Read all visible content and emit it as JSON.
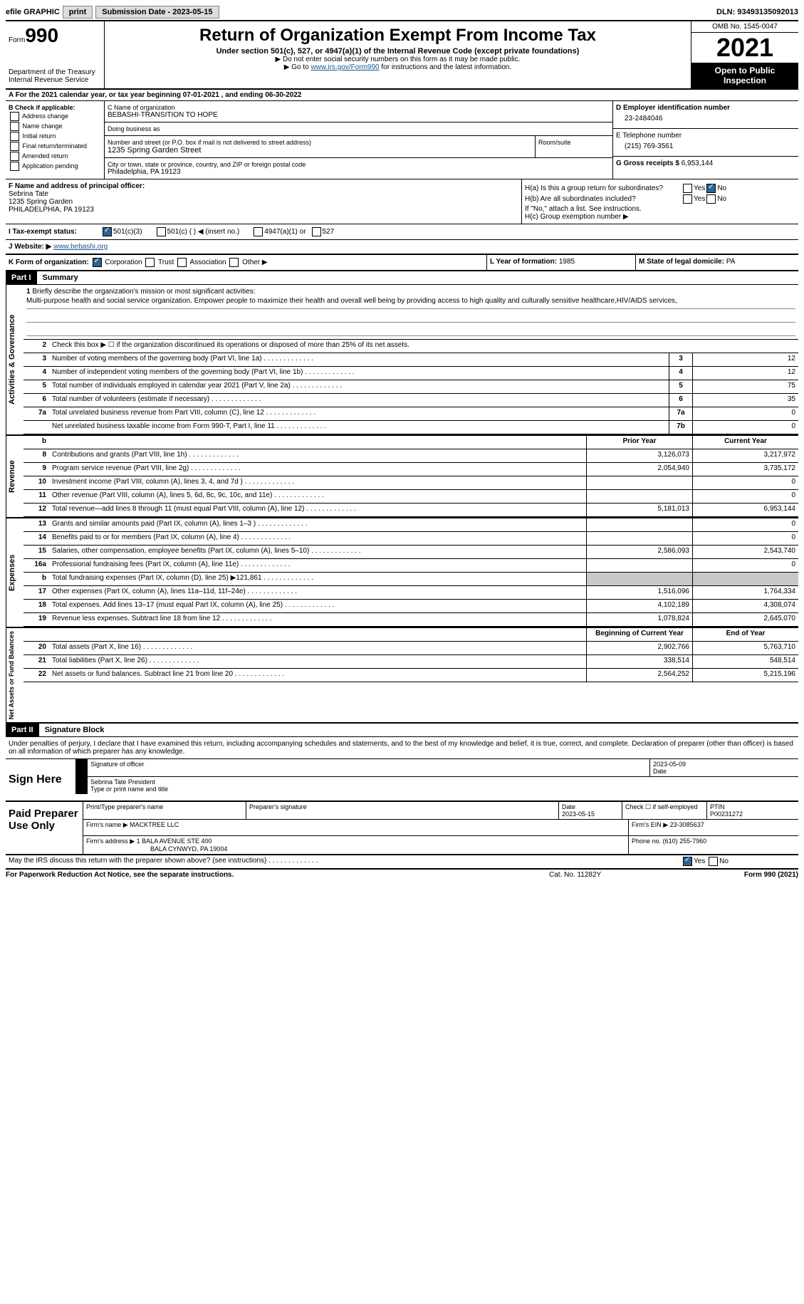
{
  "topbar": {
    "efile_label": "efile GRAPHIC",
    "print_btn": "print",
    "submission_label": "Submission Date - 2023-05-15",
    "dln": "DLN: 93493135092013"
  },
  "header": {
    "form_label": "Form",
    "form_number": "990",
    "dept": "Department of the Treasury",
    "irs": "Internal Revenue Service",
    "title": "Return of Organization Exempt From Income Tax",
    "subtitle": "Under section 501(c), 527, or 4947(a)(1) of the Internal Revenue Code (except private foundations)",
    "note1": "▶ Do not enter social security numbers on this form as it may be made public.",
    "note2_prefix": "▶ Go to ",
    "note2_link": "www.irs.gov/Form990",
    "note2_suffix": " for instructions and the latest information.",
    "omb": "OMB No. 1545-0047",
    "year": "2021",
    "open_public": "Open to Public Inspection"
  },
  "line_a": "A For the 2021 calendar year, or tax year beginning 07-01-2021   , and ending 06-30-2022",
  "section_b": {
    "label": "B Check if applicable:",
    "items": [
      "Address change",
      "Name change",
      "Initial return",
      "Final return/terminated",
      "Amended return",
      "Application pending"
    ]
  },
  "section_c": {
    "name_label": "C Name of organization",
    "org_name": "BEBASHI-TRANSITION TO HOPE",
    "dba_label": "Doing business as",
    "dba": "",
    "street_label": "Number and street (or P.O. box if mail is not delivered to street address)",
    "street": "1235 Spring Garden Street",
    "room_label": "Room/suite",
    "city_label": "City or town, state or province, country, and ZIP or foreign postal code",
    "city": "Philadelphia, PA  19123"
  },
  "section_d": {
    "ein_label": "D Employer identification number",
    "ein": "23-2484046",
    "phone_label": "E Telephone number",
    "phone": "(215) 769-3561",
    "gross_label": "G Gross receipts $",
    "gross": "6,953,144"
  },
  "section_f": {
    "label": "F  Name and address of principal officer:",
    "name": "Sebrina Tate",
    "street": "1235 Spring Garden",
    "city": "PHILADELPHIA, PA  19123"
  },
  "section_h": {
    "ha_label": "H(a)  Is this a group return for subordinates?",
    "hb_label": "H(b)  Are all subordinates included?",
    "hb_note": "If \"No,\" attach a list. See instructions.",
    "hc_label": "H(c)  Group exemption number ▶",
    "yes": "Yes",
    "no": "No"
  },
  "tax_status": {
    "label_i": "I   Tax-exempt status:",
    "opt1": "501(c)(3)",
    "opt2": "501(c) (  ) ◀ (insert no.)",
    "opt3": "4947(a)(1) or",
    "opt4": "527"
  },
  "website": {
    "label": "J  Website: ▶",
    "url": "www.bebashi.org"
  },
  "line_k": {
    "label": "K Form of organization:",
    "corp": "Corporation",
    "trust": "Trust",
    "assoc": "Association",
    "other": "Other ▶"
  },
  "line_l": {
    "label": "L Year of formation:",
    "value": "1985"
  },
  "line_m": {
    "label": "M State of legal domicile:",
    "value": "PA"
  },
  "parts": {
    "part1": "Part I",
    "summary": "Summary",
    "part2": "Part II",
    "sig_block": "Signature Block"
  },
  "summary": {
    "line1_label": "Briefly describe the organization's mission or most significant activities:",
    "mission": "Multi-purpose health and social service organization. Empower people to maximize their health and overall well being by providing access to high quality and culturally sensitive healthcare,HIV/AIDS services,",
    "line2": "Check this box ▶ ☐  if the organization discontinued its operations or disposed of more than 25% of its net assets.",
    "lines": [
      {
        "n": "3",
        "t": "Number of voting members of the governing body (Part VI, line 1a)",
        "box": "3",
        "v": "12"
      },
      {
        "n": "4",
        "t": "Number of independent voting members of the governing body (Part VI, line 1b)",
        "box": "4",
        "v": "12"
      },
      {
        "n": "5",
        "t": "Total number of individuals employed in calendar year 2021 (Part V, line 2a)",
        "box": "5",
        "v": "75"
      },
      {
        "n": "6",
        "t": "Total number of volunteers (estimate if necessary)",
        "box": "6",
        "v": "35"
      },
      {
        "n": "7a",
        "t": "Total unrelated business revenue from Part VIII, column (C), line 12",
        "box": "7a",
        "v": "0"
      },
      {
        "n": "",
        "t": "Net unrelated business taxable income from Form 990-T, Part I, line 11",
        "box": "7b",
        "v": "0"
      }
    ],
    "col_headers": {
      "prior": "Prior Year",
      "current": "Current Year",
      "begin": "Beginning of Current Year",
      "end": "End of Year"
    },
    "revenue": [
      {
        "n": "8",
        "t": "Contributions and grants (Part VIII, line 1h)",
        "p": "3,126,073",
        "c": "3,217,972"
      },
      {
        "n": "9",
        "t": "Program service revenue (Part VIII, line 2g)",
        "p": "2,054,940",
        "c": "3,735,172"
      },
      {
        "n": "10",
        "t": "Investment income (Part VIII, column (A), lines 3, 4, and 7d )",
        "p": "",
        "c": "0"
      },
      {
        "n": "11",
        "t": "Other revenue (Part VIII, column (A), lines 5, 6d, 8c, 9c, 10c, and 11e)",
        "p": "",
        "c": "0"
      },
      {
        "n": "12",
        "t": "Total revenue—add lines 8 through 11 (must equal Part VIII, column (A), line 12)",
        "p": "5,181,013",
        "c": "6,953,144"
      }
    ],
    "expenses": [
      {
        "n": "13",
        "t": "Grants and similar amounts paid (Part IX, column (A), lines 1–3 )",
        "p": "",
        "c": "0"
      },
      {
        "n": "14",
        "t": "Benefits paid to or for members (Part IX, column (A), line 4)",
        "p": "",
        "c": "0"
      },
      {
        "n": "15",
        "t": "Salaries, other compensation, employee benefits (Part IX, column (A), lines 5–10)",
        "p": "2,586,093",
        "c": "2,543,740"
      },
      {
        "n": "16a",
        "t": "Professional fundraising fees (Part IX, column (A), line 11e)",
        "p": "",
        "c": "0"
      },
      {
        "n": "b",
        "t": "Total fundraising expenses (Part IX, column (D), line 25) ▶121,861",
        "p": "shaded",
        "c": "shaded"
      },
      {
        "n": "17",
        "t": "Other expenses (Part IX, column (A), lines 11a–11d, 11f–24e)",
        "p": "1,516,096",
        "c": "1,764,334"
      },
      {
        "n": "18",
        "t": "Total expenses. Add lines 13–17 (must equal Part IX, column (A), line 25)",
        "p": "4,102,189",
        "c": "4,308,074"
      },
      {
        "n": "19",
        "t": "Revenue less expenses. Subtract line 18 from line 12",
        "p": "1,078,824",
        "c": "2,645,070"
      }
    ],
    "netassets": [
      {
        "n": "20",
        "t": "Total assets (Part X, line 16)",
        "p": "2,902,766",
        "c": "5,763,710"
      },
      {
        "n": "21",
        "t": "Total liabilities (Part X, line 26)",
        "p": "338,514",
        "c": "548,514"
      },
      {
        "n": "22",
        "t": "Net assets or fund balances. Subtract line 21 from line 20",
        "p": "2,564,252",
        "c": "5,215,196"
      }
    ],
    "vert_labels": {
      "ag": "Activities & Governance",
      "rev": "Revenue",
      "exp": "Expenses",
      "na": "Net Assets or Fund Balances"
    }
  },
  "penalties": "Under penalties of perjury, I declare that I have examined this return, including accompanying schedules and statements, and to the best of my knowledge and belief, it is true, correct, and complete. Declaration of preparer (other than officer) is based on all information of which preparer has any knowledge.",
  "sign": {
    "label": "Sign Here",
    "sig_officer": "Signature of officer",
    "date_label": "Date",
    "date": "2023-05-09",
    "name_title": "Sebrina Tate  President",
    "type_name": "Type or print name and title"
  },
  "paid": {
    "label": "Paid Preparer Use Only",
    "print_name_label": "Print/Type preparer's name",
    "sig_label": "Preparer's signature",
    "date_label": "Date",
    "date": "2023-05-15",
    "check_label": "Check ☐ if self-employed",
    "ptin_label": "PTIN",
    "ptin": "P00231272",
    "firm_name_label": "Firm's name    ▶",
    "firm_name": "MACKTREE LLC",
    "firm_ein_label": "Firm's EIN ▶",
    "firm_ein": "23-3085637",
    "firm_addr_label": "Firm's address ▶",
    "firm_addr1": "1 BALA AVENUE STE 400",
    "firm_addr2": "BALA CYNWYD, PA  19004",
    "phone_label": "Phone no.",
    "phone": "(610) 255-7960"
  },
  "discuss": {
    "text": "May the IRS discuss this return with the preparer shown above? (see instructions)",
    "yes": "Yes",
    "no": "No"
  },
  "footer": {
    "left": "For Paperwork Reduction Act Notice, see the separate instructions.",
    "center": "Cat. No. 11282Y",
    "right": "Form 990 (2021)"
  }
}
